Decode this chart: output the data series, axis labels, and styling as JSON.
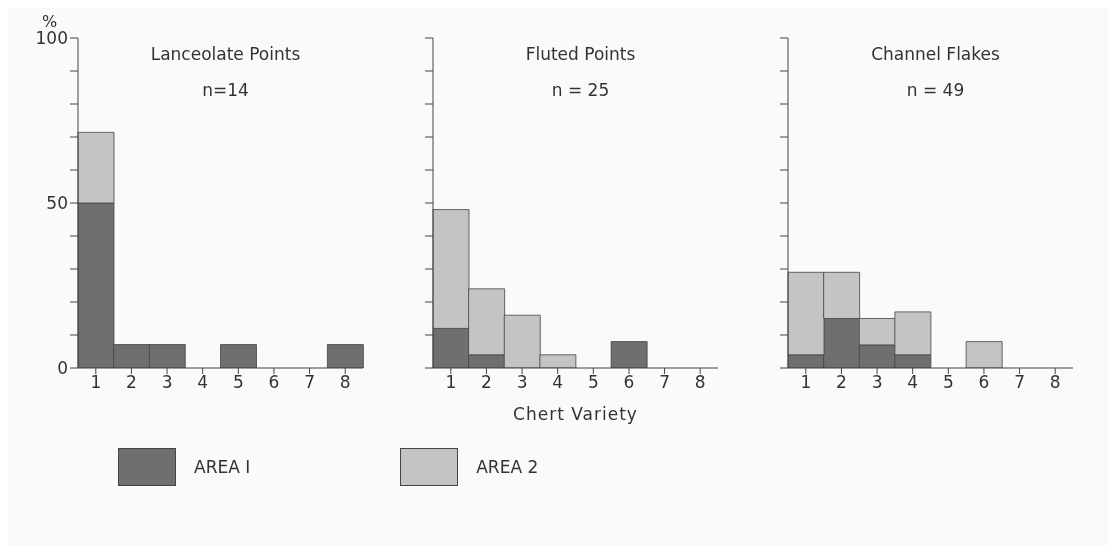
{
  "chart_data": [
    {
      "type": "bar",
      "title": "Lanceolate Points",
      "subtitle": "n=14",
      "ylabel": "%",
      "categories": [
        "1",
        "2",
        "3",
        "4",
        "5",
        "6",
        "7",
        "8"
      ],
      "stacked": true,
      "legend": "bottom",
      "series": [
        {
          "name": "AREA I",
          "color": "#6f6f6f",
          "values": [
            50,
            7.1,
            7.1,
            0,
            7.1,
            0,
            0,
            7.1
          ]
        },
        {
          "name": "AREA 2",
          "color": "#c4c4c4",
          "values": [
            21.4,
            0,
            0,
            0,
            0,
            0,
            0,
            0
          ]
        }
      ],
      "ylim": [
        0,
        100
      ],
      "yticks": [
        0,
        {
          "value": 10,
          "label": null
        },
        {
          "value": 20,
          "label": null
        },
        {
          "value": 30,
          "label": null
        },
        {
          "value": 40,
          "label": null
        },
        50,
        {
          "value": 60,
          "label": null
        },
        {
          "value": 70,
          "label": null
        },
        {
          "value": 80,
          "label": null
        },
        {
          "value": 90,
          "label": null
        },
        100
      ]
    },
    {
      "type": "bar",
      "title": "Fluted Points",
      "subtitle": "n = 25",
      "xlabel": "Chert Variety",
      "categories": [
        "1",
        "2",
        "3",
        "4",
        "5",
        "6",
        "7",
        "8"
      ],
      "stacked": true,
      "tick_labels": "x",
      "series": [
        {
          "color": "#6f6f6f",
          "values": [
            12,
            4,
            0,
            0,
            0,
            8,
            0,
            0
          ]
        },
        {
          "color": "#c4c4c4",
          "values": [
            36,
            20,
            16,
            4,
            0,
            0,
            0,
            0
          ]
        }
      ],
      "ylim": [
        0,
        100
      ],
      "yticks": [
        0,
        {
          "value": 10,
          "label": null
        },
        {
          "value": 20,
          "label": null
        },
        {
          "value": 30,
          "label": null
        },
        {
          "value": 40,
          "label": null
        },
        {
          "value": 50,
          "label": null
        },
        {
          "value": 60,
          "label": null
        },
        {
          "value": 70,
          "label": null
        },
        {
          "value": 80,
          "label": null
        },
        {
          "value": 90,
          "label": null
        },
        {
          "value": 100,
          "label": null
        }
      ]
    },
    {
      "type": "bar",
      "title": "Channel Flakes",
      "subtitle": "n = 49",
      "categories": [
        "1",
        "2",
        "3",
        "4",
        "5",
        "6",
        "7",
        "8"
      ],
      "stacked": true,
      "tick_labels": "x",
      "series": [
        {
          "color": "#6f6f6f",
          "values": [
            4,
            15,
            7,
            4,
            0,
            0,
            0,
            0
          ]
        },
        {
          "color": "#c4c4c4",
          "values": [
            25,
            14,
            8,
            13,
            0,
            8,
            0,
            0
          ]
        }
      ],
      "ylim": [
        0,
        100
      ],
      "yticks": [
        0,
        {
          "value": 10,
          "label": null
        },
        {
          "value": 20,
          "label": null
        },
        {
          "value": 30,
          "label": null
        },
        {
          "value": 40,
          "label": null
        },
        {
          "value": 50,
          "label": null
        },
        {
          "value": 60,
          "label": null
        },
        {
          "value": 70,
          "label": null
        },
        {
          "value": 80,
          "label": null
        },
        {
          "value": 90,
          "label": null
        },
        {
          "value": 100,
          "label": null
        }
      ]
    }
  ]
}
